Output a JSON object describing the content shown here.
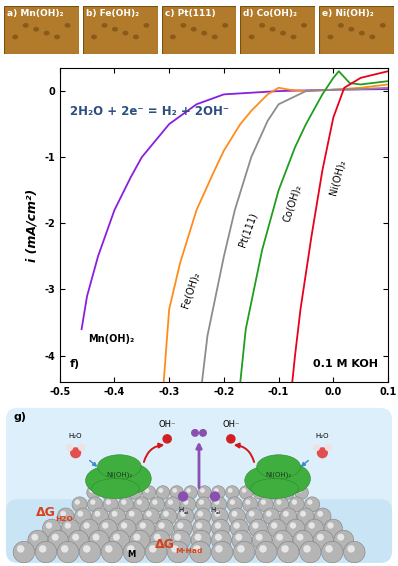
{
  "panels": [
    {
      "label": "a)",
      "text": "Mn(OH)₂"
    },
    {
      "label": "b)",
      "text": "Fe(OH)₂"
    },
    {
      "label": "c)",
      "text": "Pt(111)"
    },
    {
      "label": "d)",
      "text": "Co(OH)₂"
    },
    {
      "label": "e)",
      "text": "Ni(OH)₂"
    }
  ],
  "chart_data": {
    "type": "line",
    "panel_label": "f)",
    "annotations": [
      "2H₂O + 2e⁻ = H₂ + 2OH⁻",
      "0.1 M KOH"
    ],
    "y_label": "i (mA/cm²)",
    "xlim": [
      -0.5,
      0.1
    ],
    "xticks": [
      -0.5,
      -0.4,
      -0.3,
      -0.2,
      -0.1,
      0.0,
      0.1
    ],
    "ylim": [
      -4.4,
      0.35
    ],
    "yticks": [
      -4,
      -3,
      -2,
      -1,
      0
    ],
    "series": [
      {
        "name": "Mn(OH)₂",
        "color": "#8a1ee0",
        "x": [
          -0.46,
          -0.45,
          -0.43,
          -0.4,
          -0.37,
          -0.35,
          -0.32,
          -0.3,
          -0.25,
          -0.2,
          -0.1,
          0.0,
          0.1
        ],
        "values": [
          -3.6,
          -3.1,
          -2.5,
          -1.8,
          -1.3,
          -1.0,
          -0.7,
          -0.5,
          -0.2,
          -0.05,
          0.0,
          0.02,
          0.03
        ]
      },
      {
        "name": "Fe(OH)₂",
        "color": "#ff8c1a",
        "x": [
          -0.31,
          -0.3,
          -0.28,
          -0.25,
          -0.22,
          -0.2,
          -0.17,
          -0.15,
          -0.12,
          -0.1,
          -0.08,
          -0.05,
          0.0,
          0.05,
          0.1
        ],
        "values": [
          -4.4,
          -3.3,
          -2.6,
          -1.8,
          -1.25,
          -0.9,
          -0.5,
          -0.3,
          -0.05,
          0.05,
          0.02,
          0.0,
          0.02,
          0.05,
          0.1
        ]
      },
      {
        "name": "Pt(111)",
        "color": "#8c8c8c",
        "x": [
          -0.24,
          -0.23,
          -0.21,
          -0.2,
          -0.18,
          -0.15,
          -0.12,
          -0.1,
          -0.05,
          0.0,
          0.05,
          0.1
        ],
        "values": [
          -4.4,
          -3.7,
          -2.9,
          -2.5,
          -1.8,
          -1.0,
          -0.45,
          -0.2,
          0.0,
          0.02,
          0.03,
          0.05
        ]
      },
      {
        "name": "Co(OH)₂",
        "color": "#1e9e1e",
        "x": [
          -0.17,
          -0.16,
          -0.13,
          -0.1,
          -0.07,
          -0.05,
          -0.02,
          0.0,
          0.01,
          0.03,
          0.05,
          0.1
        ],
        "values": [
          -4.4,
          -3.6,
          -2.4,
          -1.5,
          -0.85,
          -0.5,
          -0.05,
          0.2,
          0.3,
          0.12,
          0.1,
          0.15
        ]
      },
      {
        "name": "Ni(OH)₂",
        "color": "#e8001c",
        "x": [
          -0.075,
          -0.07,
          -0.06,
          -0.04,
          -0.02,
          0.0,
          0.02,
          0.05,
          0.1
        ],
        "values": [
          -4.4,
          -4.0,
          -3.3,
          -2.2,
          -1.2,
          -0.4,
          0.05,
          0.2,
          0.3
        ]
      }
    ]
  },
  "schematic": {
    "label": "g)",
    "blob_labels": [
      "Ni(OH)₂",
      "Ni(OH)₂"
    ],
    "water": [
      "H₂O",
      "H₂O"
    ],
    "hydroxide": [
      "OH⁻",
      "OH⁻"
    ],
    "h_ads": [
      {
        "main": "H",
        "sub": "ad"
      },
      {
        "main": "H",
        "sub": "ad"
      }
    ],
    "delta_g": [
      {
        "main": "ΔG",
        "sub": "H2O"
      },
      {
        "main": "ΔG",
        "sub": "M-Had"
      }
    ],
    "metal": "M"
  }
}
